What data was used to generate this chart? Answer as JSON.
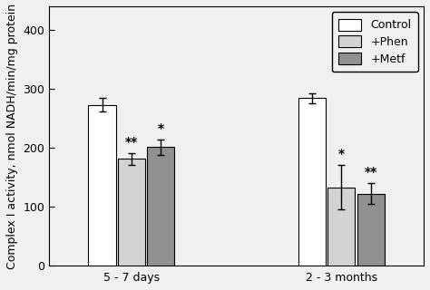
{
  "groups": [
    "5 - 7 days",
    "2 - 3 months"
  ],
  "bar_labels": [
    "Control",
    "+Phen",
    "+Metf"
  ],
  "bar_colors": [
    "#ffffff",
    "#d3d3d3",
    "#909090"
  ],
  "bar_edgecolor": "#000000",
  "values": [
    [
      273,
      181,
      201
    ],
    [
      284,
      133,
      122
    ]
  ],
  "errors": [
    [
      12,
      10,
      13
    ],
    [
      8,
      38,
      18
    ]
  ],
  "significance": [
    [
      "",
      "**",
      "*"
    ],
    [
      "",
      "*",
      "**"
    ]
  ],
  "ylabel": "Complex I activity, nmol NADH/min/mg protein",
  "ylim": [
    0,
    440
  ],
  "yticks": [
    0,
    100,
    200,
    300,
    400
  ],
  "bar_width": 0.28,
  "group_centers": [
    1.0,
    3.0
  ],
  "legend_loc": "upper right",
  "axis_fontsize": 9,
  "tick_fontsize": 9,
  "sig_fontsize": 10,
  "capsize": 3,
  "elinewidth": 1.0,
  "background_color": "#f0f0f0"
}
